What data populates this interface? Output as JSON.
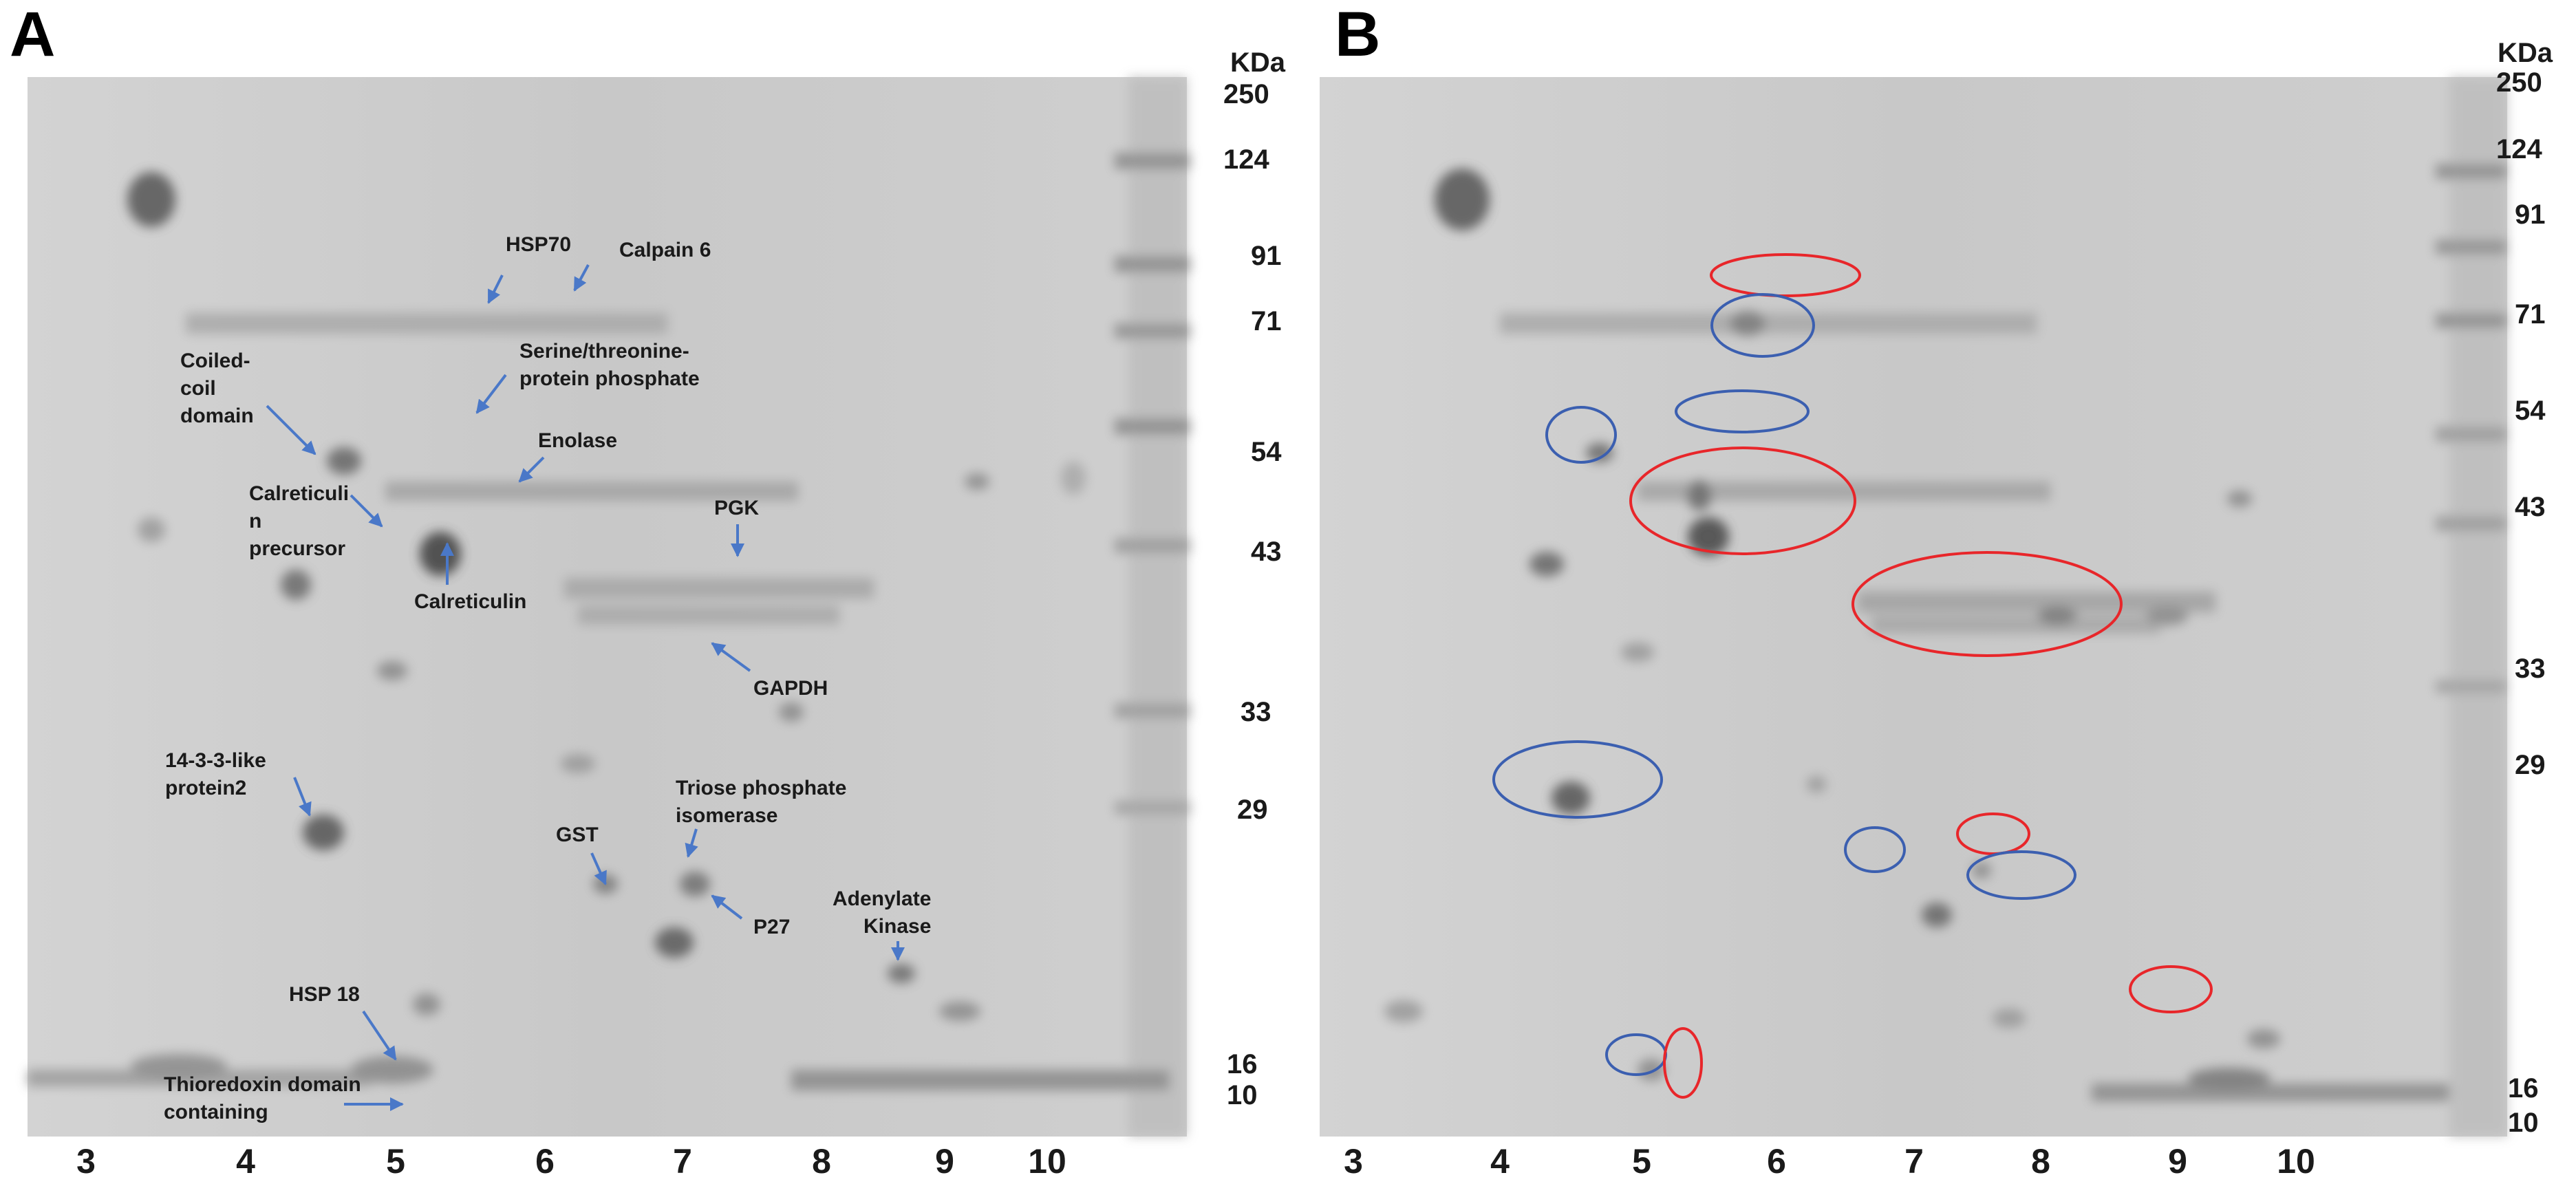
{
  "panels": [
    {
      "letter": "A",
      "kda_unit": "KDa",
      "mw_markers": [
        "250",
        "124",
        "91",
        "71",
        "54",
        "43",
        "33",
        "29",
        "16",
        "10"
      ],
      "ph_labels": [
        "3",
        "4",
        "5",
        "6",
        "7",
        "8",
        "9",
        "10"
      ],
      "annotations": [
        {
          "lines": [
            "HSP70"
          ]
        },
        {
          "lines": [
            "Calpain 6"
          ]
        },
        {
          "lines": [
            "Coiled-",
            "coil",
            "domain"
          ]
        },
        {
          "lines": [
            "Serine/threonine-",
            "protein phosphate"
          ]
        },
        {
          "lines": [
            "Enolase"
          ]
        },
        {
          "lines": [
            "Calreticuli",
            "n",
            "precursor"
          ]
        },
        {
          "lines": [
            "PGK"
          ]
        },
        {
          "lines": [
            "Calreticulin"
          ]
        },
        {
          "lines": [
            "GAPDH"
          ]
        },
        {
          "lines": [
            "14-3-3-like",
            "protein2"
          ]
        },
        {
          "lines": [
            "Triose phosphate",
            "isomerase"
          ]
        },
        {
          "lines": [
            "GST"
          ]
        },
        {
          "lines": [
            "P27"
          ]
        },
        {
          "lines": [
            "Adenylate",
            "Kinase"
          ]
        },
        {
          "lines": [
            "HSP 18"
          ]
        },
        {
          "lines": [
            "Thioredoxin domain",
            "containing"
          ]
        }
      ]
    },
    {
      "letter": "B",
      "kda_unit": "KDa",
      "mw_markers": [
        "250",
        "124",
        "91",
        "71",
        "54",
        "43",
        "33",
        "29",
        "16",
        "10"
      ],
      "ph_labels": [
        "3",
        "4",
        "5",
        "6",
        "7",
        "8",
        "9",
        "10"
      ],
      "circle_colors": {
        "increased": "#e8262a",
        "decreased": "#3b5fb0"
      }
    }
  ],
  "colors": {
    "arrow": "#4a78c8",
    "gel": "#c9c9c9"
  }
}
